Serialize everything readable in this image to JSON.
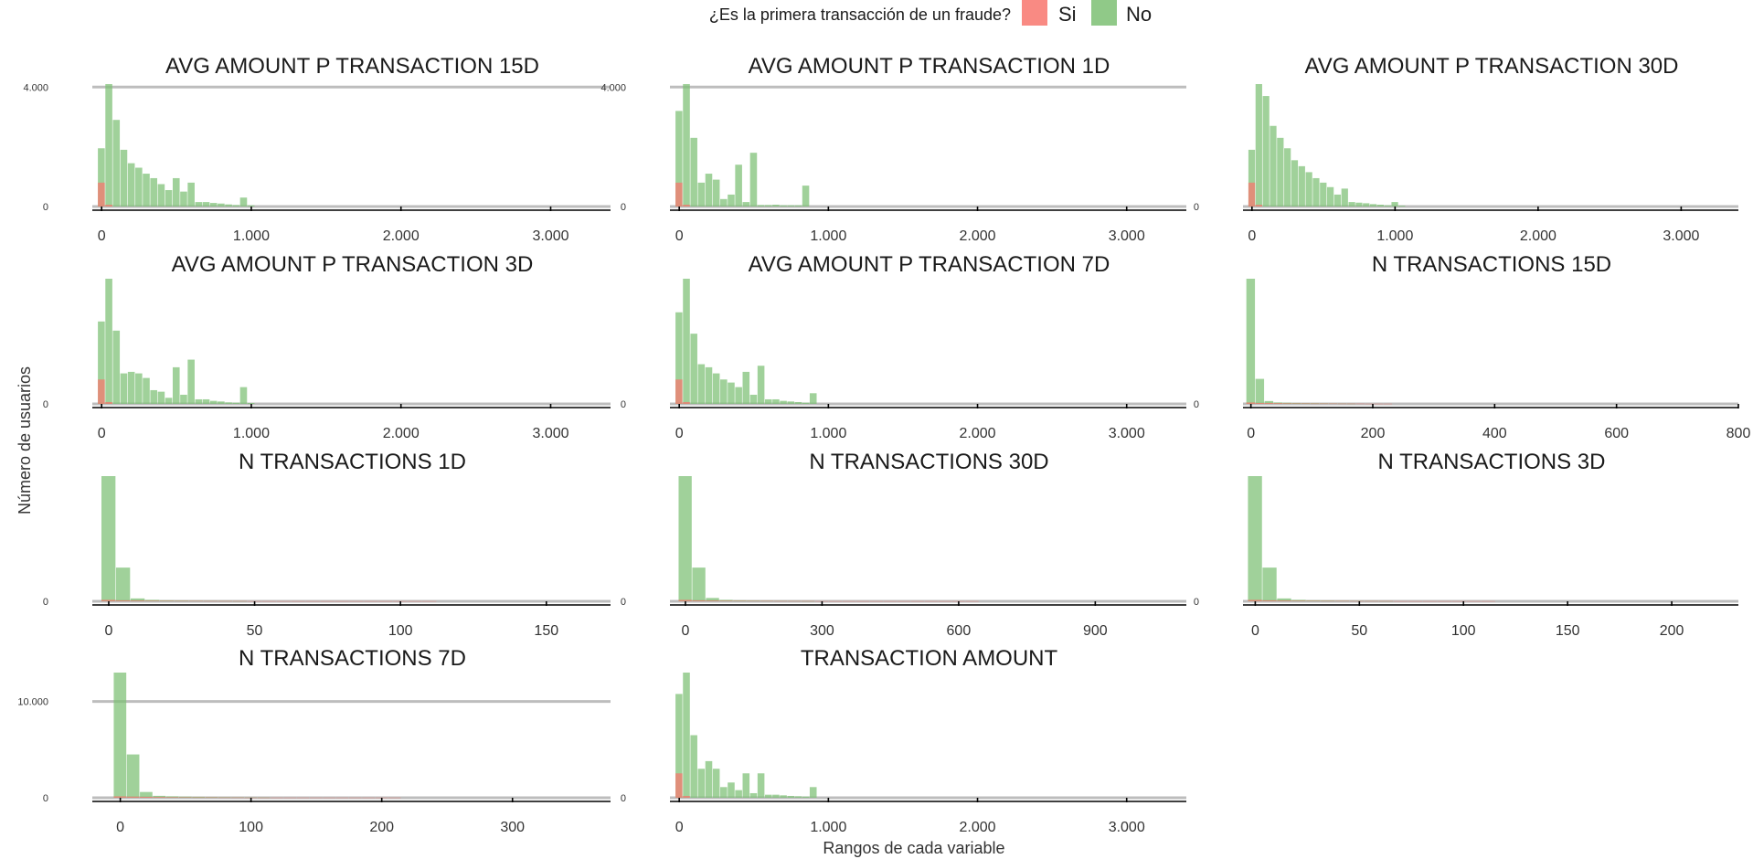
{
  "chart_data": {
    "type": "bar",
    "legend": {
      "title": "¿Es la primera transacción de un fraude?",
      "position": "top",
      "entries": [
        {
          "label": "Si",
          "color": "#F8766D"
        },
        {
          "label": "No",
          "color": "#7CBF73"
        }
      ]
    },
    "xlabel": "Rangos de cada variable",
    "ylabel": "Número de usuarios",
    "grid": true,
    "facets": [
      {
        "title": "AVG AMOUNT P TRANSACTION 15D",
        "xlim": [
          -50,
          3400
        ],
        "ylim": [
          0,
          4100
        ],
        "xticks": [
          0,
          1000,
          2000,
          3000
        ],
        "xtick_labels": [
          "0",
          "1.000",
          "2.000",
          "3.000"
        ],
        "yticks": [
          0,
          4000
        ],
        "ytick_labels": [
          "0",
          "4.000"
        ],
        "bin_width": 50,
        "bin_start": -25,
        "no_counts": [
          1950,
          4100,
          2900,
          1900,
          1450,
          1300,
          1100,
          950,
          750,
          550,
          950,
          500,
          800,
          150,
          150,
          120,
          100,
          70,
          50,
          300,
          40
        ],
        "si_counts": [
          800,
          60
        ]
      },
      {
        "title": "AVG AMOUNT P TRANSACTION 1D",
        "xlim": [
          -50,
          3400
        ],
        "ylim": [
          0,
          4100
        ],
        "xticks": [
          0,
          1000,
          2000,
          3000
        ],
        "xtick_labels": [
          "0",
          "1.000",
          "2.000",
          "3.000"
        ],
        "yticks": [
          0,
          4000
        ],
        "ytick_labels": [
          "0",
          "4.000"
        ],
        "bin_width": 50,
        "bin_start": -25,
        "no_counts": [
          3200,
          4100,
          2300,
          800,
          1100,
          900,
          250,
          400,
          1400,
          150,
          1800,
          50,
          50,
          60,
          40,
          40,
          40,
          700
        ],
        "si_counts": [
          800,
          60
        ]
      },
      {
        "title": "AVG AMOUNT P TRANSACTION 30D",
        "xlim": [
          -50,
          3400
        ],
        "ylim": [
          0,
          4100
        ],
        "xticks": [
          0,
          1000,
          2000,
          3000
        ],
        "xtick_labels": [
          "0",
          "1.000",
          "2.000",
          "3.000"
        ],
        "yticks": [
          0
        ],
        "ytick_labels": [
          "0"
        ],
        "bin_width": 50,
        "bin_start": -25,
        "no_counts": [
          1900,
          4100,
          3700,
          2700,
          2300,
          1950,
          1550,
          1350,
          1150,
          950,
          800,
          650,
          400,
          600,
          150,
          130,
          110,
          80,
          60,
          40,
          150,
          30
        ],
        "si_counts": [
          800,
          60
        ]
      },
      {
        "title": "AVG AMOUNT P TRANSACTION 3D",
        "xlim": [
          -50,
          3400
        ],
        "ylim": [
          0,
          4100
        ],
        "xticks": [
          0,
          1000,
          2000,
          3000
        ],
        "xtick_labels": [
          "0",
          "1.000",
          "2.000",
          "3.000"
        ],
        "yticks": [
          0
        ],
        "ytick_labels": [
          "0"
        ],
        "bin_width": 50,
        "bin_start": -25,
        "no_counts": [
          2700,
          4100,
          2400,
          1000,
          1050,
          1000,
          850,
          450,
          400,
          200,
          1200,
          300,
          1450,
          150,
          150,
          100,
          80,
          50,
          40,
          550,
          30
        ],
        "si_counts": [
          800,
          60
        ]
      },
      {
        "title": "AVG AMOUNT P TRANSACTION 7D",
        "xlim": [
          -50,
          3400
        ],
        "ylim": [
          0,
          4100
        ],
        "xticks": [
          0,
          1000,
          2000,
          3000
        ],
        "xtick_labels": [
          "0",
          "1.000",
          "2.000",
          "3.000"
        ],
        "yticks": [
          0
        ],
        "ytick_labels": [
          "0"
        ],
        "bin_width": 50,
        "bin_start": -25,
        "no_counts": [
          3000,
          4100,
          2300,
          1300,
          1200,
          1000,
          800,
          700,
          550,
          1050,
          300,
          1250,
          150,
          150,
          100,
          80,
          60,
          40,
          350
        ],
        "si_counts": [
          800,
          60
        ]
      },
      {
        "title": "N TRANSACTIONS 15D",
        "xlim": [
          -10,
          800
        ],
        "ylim": [
          0,
          13000
        ],
        "xticks": [
          0,
          200,
          400,
          600,
          800
        ],
        "xtick_labels": [
          "0",
          "200",
          "400",
          "600",
          "800"
        ],
        "yticks": [
          0
        ],
        "ytick_labels": [
          "0"
        ],
        "bin_width": 15,
        "bin_start": -7.5,
        "no_counts": [
          13000,
          2600,
          300,
          150,
          120,
          100,
          80,
          70,
          60,
          50,
          40,
          30
        ],
        "si_counts": [
          150,
          100,
          100,
          80,
          60,
          50,
          50,
          40,
          40,
          40,
          30,
          30,
          30,
          20,
          20,
          20
        ]
      },
      {
        "title": "N TRANSACTIONS 1D",
        "xlim": [
          -5,
          172
        ],
        "ylim": [
          0,
          13000
        ],
        "xticks": [
          0,
          50,
          100,
          150
        ],
        "xtick_labels": [
          "0",
          "50",
          "100",
          "150"
        ],
        "yticks": [
          0
        ],
        "ytick_labels": [
          "0"
        ],
        "bin_width": 5,
        "bin_start": -2.5,
        "no_counts": [
          13000,
          3500,
          300,
          150,
          100,
          80,
          60,
          50,
          40,
          30
        ],
        "si_counts": [
          150,
          100,
          80,
          60,
          50,
          40,
          40,
          30,
          30,
          30,
          20,
          20,
          20,
          20,
          20,
          20,
          20,
          20,
          20,
          20,
          20,
          20,
          20
        ]
      },
      {
        "title": "N TRANSACTIONS 30D",
        "xlim": [
          -30,
          1100
        ],
        "ylim": [
          0,
          13000
        ],
        "xticks": [
          0,
          300,
          600,
          900
        ],
        "xtick_labels": [
          "0",
          "300",
          "600",
          "900"
        ],
        "yticks": [
          0
        ],
        "ytick_labels": [
          "0"
        ],
        "bin_width": 30,
        "bin_start": -15,
        "no_counts": [
          13000,
          3500,
          350,
          150,
          100,
          80,
          60,
          50,
          40,
          30
        ],
        "si_counts": [
          150,
          100,
          80,
          60,
          50,
          40,
          40,
          30,
          30,
          30,
          20,
          20,
          20,
          20,
          20,
          20,
          20,
          20,
          20,
          20,
          20,
          20
        ]
      },
      {
        "title": "N TRANSACTIONS 3D",
        "xlim": [
          -5,
          232
        ],
        "ylim": [
          0,
          13000
        ],
        "xticks": [
          0,
          50,
          100,
          150,
          200
        ],
        "xtick_labels": [
          "0",
          "50",
          "100",
          "150",
          "200"
        ],
        "yticks": [
          0
        ],
        "ytick_labels": [
          "0"
        ],
        "bin_width": 7,
        "bin_start": -3.5,
        "no_counts": [
          13000,
          3500,
          300,
          150,
          100,
          80,
          60,
          50,
          40,
          30
        ],
        "si_counts": [
          150,
          100,
          80,
          60,
          50,
          40,
          40,
          30,
          30,
          30,
          20,
          20,
          20,
          20,
          20,
          20,
          20
        ]
      },
      {
        "title": "N TRANSACTIONS 7D",
        "xlim": [
          -20,
          375
        ],
        "ylim": [
          0,
          13000
        ],
        "xticks": [
          0,
          100,
          200,
          300
        ],
        "xtick_labels": [
          "0",
          "100",
          "200",
          "300"
        ],
        "yticks": [
          0,
          10000
        ],
        "ytick_labels": [
          "0",
          "10.000"
        ],
        "bin_width": 10,
        "bin_start": -5,
        "no_counts": [
          13000,
          4500,
          600,
          200,
          150,
          120,
          100,
          80,
          60,
          50,
          40,
          30
        ],
        "si_counts": [
          150,
          120,
          100,
          80,
          60,
          50,
          40,
          40,
          30,
          30,
          20,
          20,
          20,
          20,
          20,
          20,
          20,
          20,
          20,
          20,
          20,
          20
        ]
      },
      {
        "title": "TRANSACTION AMOUNT",
        "xlim": [
          -50,
          3400
        ],
        "ylim": [
          0,
          4100
        ],
        "xticks": [
          0,
          1000,
          2000,
          3000
        ],
        "xtick_labels": [
          "0",
          "1.000",
          "2.000",
          "3.000"
        ],
        "yticks": [
          0
        ],
        "ytick_labels": [
          "0"
        ],
        "bin_width": 50,
        "bin_start": -25,
        "no_counts": [
          3400,
          4100,
          2050,
          950,
          1200,
          950,
          350,
          500,
          250,
          800,
          150,
          800,
          100,
          100,
          80,
          60,
          50,
          40,
          350
        ],
        "si_counts": [
          800,
          60
        ]
      }
    ]
  }
}
